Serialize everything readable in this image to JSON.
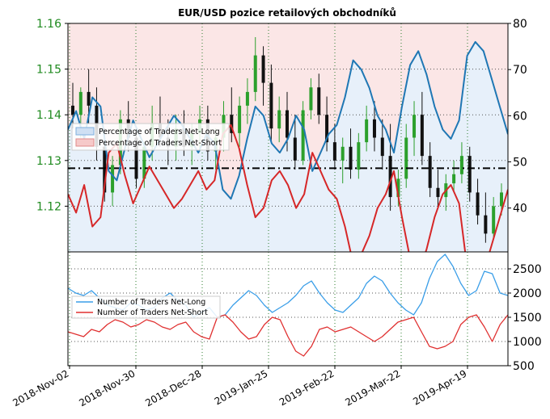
{
  "chart_data": [
    {
      "type": "line",
      "title": "EUR/USD pozice retailových obchodníků",
      "x_tick_labels": [
        "2018-Nov-02",
        "2018-Nov-30",
        "2018-Dec-28",
        "2019-Jan-25",
        "2019-Feb-22",
        "2019-Mar-22",
        "2019-Apr-19"
      ],
      "y_left": {
        "ticks": [
          "1.12",
          "1.13",
          "1.14",
          "1.15",
          "1.16"
        ],
        "range": [
          1.11,
          1.16
        ],
        "color": "#1f8a1f",
        "label": ""
      },
      "y_right": {
        "ticks": [
          "40",
          "50",
          "60",
          "70",
          "80"
        ],
        "range": [
          30.5,
          80
        ],
        "label": ""
      },
      "grid": true,
      "legend_position": "middle-left",
      "reference_line": {
        "value": 49.5,
        "style": "dash-dot"
      },
      "price_candles": [
        [
          1.142,
          1.147,
          1.137,
          1.14
        ],
        [
          1.14,
          1.146,
          1.135,
          1.145
        ],
        [
          1.145,
          1.15,
          1.138,
          1.142
        ],
        [
          1.142,
          1.146,
          1.13,
          1.133
        ],
        [
          1.133,
          1.137,
          1.121,
          1.123
        ],
        [
          1.123,
          1.131,
          1.12,
          1.129
        ],
        [
          1.129,
          1.141,
          1.127,
          1.139
        ],
        [
          1.139,
          1.143,
          1.132,
          1.135
        ],
        [
          1.135,
          1.137,
          1.124,
          1.126
        ],
        [
          1.126,
          1.134,
          1.124,
          1.133
        ],
        [
          1.133,
          1.142,
          1.13,
          1.138
        ],
        [
          1.138,
          1.144,
          1.133,
          1.135
        ],
        [
          1.135,
          1.139,
          1.129,
          1.133
        ],
        [
          1.133,
          1.14,
          1.13,
          1.137
        ],
        [
          1.137,
          1.141,
          1.131,
          1.133
        ],
        [
          1.133,
          1.138,
          1.129,
          1.136
        ],
        [
          1.136,
          1.142,
          1.132,
          1.139
        ],
        [
          1.139,
          1.142,
          1.13,
          1.132
        ],
        [
          1.132,
          1.137,
          1.128,
          1.135
        ],
        [
          1.135,
          1.143,
          1.132,
          1.14
        ],
        [
          1.14,
          1.146,
          1.134,
          1.136
        ],
        [
          1.136,
          1.144,
          1.133,
          1.142
        ],
        [
          1.142,
          1.148,
          1.138,
          1.145
        ],
        [
          1.145,
          1.157,
          1.143,
          1.153
        ],
        [
          1.153,
          1.155,
          1.142,
          1.147
        ],
        [
          1.147,
          1.151,
          1.134,
          1.137
        ],
        [
          1.137,
          1.144,
          1.134,
          1.141
        ],
        [
          1.141,
          1.145,
          1.132,
          1.135
        ],
        [
          1.135,
          1.14,
          1.128,
          1.13
        ],
        [
          1.13,
          1.143,
          1.129,
          1.141
        ],
        [
          1.141,
          1.148,
          1.139,
          1.146
        ],
        [
          1.146,
          1.149,
          1.138,
          1.14
        ],
        [
          1.14,
          1.144,
          1.132,
          1.134
        ],
        [
          1.134,
          1.138,
          1.128,
          1.13
        ],
        [
          1.13,
          1.135,
          1.125,
          1.133
        ],
        [
          1.133,
          1.137,
          1.126,
          1.128
        ],
        [
          1.128,
          1.136,
          1.126,
          1.134
        ],
        [
          1.134,
          1.142,
          1.132,
          1.139
        ],
        [
          1.139,
          1.143,
          1.132,
          1.135
        ],
        [
          1.135,
          1.139,
          1.128,
          1.131
        ],
        [
          1.131,
          1.138,
          1.119,
          1.122
        ],
        [
          1.122,
          1.128,
          1.12,
          1.126
        ],
        [
          1.126,
          1.138,
          1.124,
          1.135
        ],
        [
          1.135,
          1.143,
          1.131,
          1.14
        ],
        [
          1.14,
          1.145,
          1.129,
          1.131
        ],
        [
          1.131,
          1.134,
          1.122,
          1.124
        ],
        [
          1.124,
          1.128,
          1.12,
          1.122
        ],
        [
          1.122,
          1.127,
          1.119,
          1.125
        ],
        [
          1.125,
          1.13,
          1.123,
          1.127
        ],
        [
          1.127,
          1.134,
          1.125,
          1.131
        ],
        [
          1.131,
          1.133,
          1.121,
          1.123
        ],
        [
          1.123,
          1.126,
          1.116,
          1.118
        ],
        [
          1.118,
          1.123,
          1.112,
          1.114
        ],
        [
          1.114,
          1.122,
          1.113,
          1.12
        ],
        [
          1.12,
          1.125,
          1.118,
          1.123
        ]
      ],
      "series": [
        {
          "name": "Percentage of Traders Net-Long",
          "color": "#1f77b4",
          "values": [
            57,
            61,
            55,
            64,
            62,
            48,
            46,
            53,
            59,
            55,
            51,
            54,
            57,
            60,
            58,
            55,
            52,
            56,
            54,
            44,
            42,
            47,
            55,
            62,
            60,
            54,
            52,
            55,
            60,
            57,
            48,
            52,
            56,
            58,
            64,
            72,
            70,
            66,
            60,
            57,
            52,
            62,
            71,
            74,
            69,
            62,
            57,
            55,
            59,
            73,
            76,
            74,
            68,
            62,
            56
          ]
        },
        {
          "name": "Percentage of Traders Net-Short",
          "color": "#d62728",
          "values": [
            43,
            39,
            45,
            36,
            38,
            52,
            54,
            47,
            41,
            45,
            49,
            46,
            43,
            40,
            42,
            45,
            48,
            44,
            46,
            56,
            58,
            53,
            45,
            38,
            40,
            46,
            48,
            45,
            40,
            43,
            52,
            48,
            44,
            42,
            36,
            28,
            30,
            34,
            40,
            43,
            48,
            38,
            29,
            26,
            31,
            38,
            43,
            45,
            41,
            27,
            24,
            26,
            32,
            38,
            44
          ]
        }
      ]
    },
    {
      "type": "line",
      "y_right": {
        "ticks": [
          "500",
          "1000",
          "1500",
          "2000",
          "2500"
        ],
        "range": [
          500,
          2850
        ],
        "label": ""
      },
      "grid": true,
      "legend_position": "middle-left",
      "series": [
        {
          "name": "Number of Traders Net-Long",
          "color": "#3a9ee8",
          "values": [
            2100,
            2000,
            1950,
            2050,
            1900,
            1750,
            1700,
            1650,
            1800,
            1750,
            1650,
            1700,
            1900,
            2000,
            1850,
            1750,
            1500,
            1600,
            1700,
            1500,
            1550,
            1750,
            1900,
            2050,
            1950,
            1750,
            1600,
            1700,
            1800,
            1950,
            2150,
            2250,
            2000,
            1800,
            1650,
            1600,
            1750,
            1900,
            2200,
            2350,
            2250,
            2000,
            1800,
            1650,
            1550,
            1800,
            2300,
            2650,
            2800,
            2550,
            2200,
            1950,
            2050,
            2450,
            2400,
            2000,
            1950
          ]
        },
        {
          "name": "Number of Traders Net-Short",
          "color": "#e03030",
          "values": [
            1200,
            1150,
            1100,
            1250,
            1200,
            1350,
            1450,
            1400,
            1300,
            1350,
            1450,
            1400,
            1300,
            1250,
            1350,
            1400,
            1200,
            1100,
            1050,
            1500,
            1550,
            1400,
            1200,
            1050,
            1100,
            1350,
            1500,
            1450,
            1100,
            800,
            700,
            900,
            1250,
            1300,
            1200,
            1250,
            1300,
            1200,
            1100,
            1000,
            1100,
            1250,
            1400,
            1450,
            1500,
            1200,
            900,
            850,
            900,
            1000,
            1350,
            1500,
            1550,
            1300,
            1000,
            1350,
            1550
          ]
        }
      ]
    }
  ]
}
